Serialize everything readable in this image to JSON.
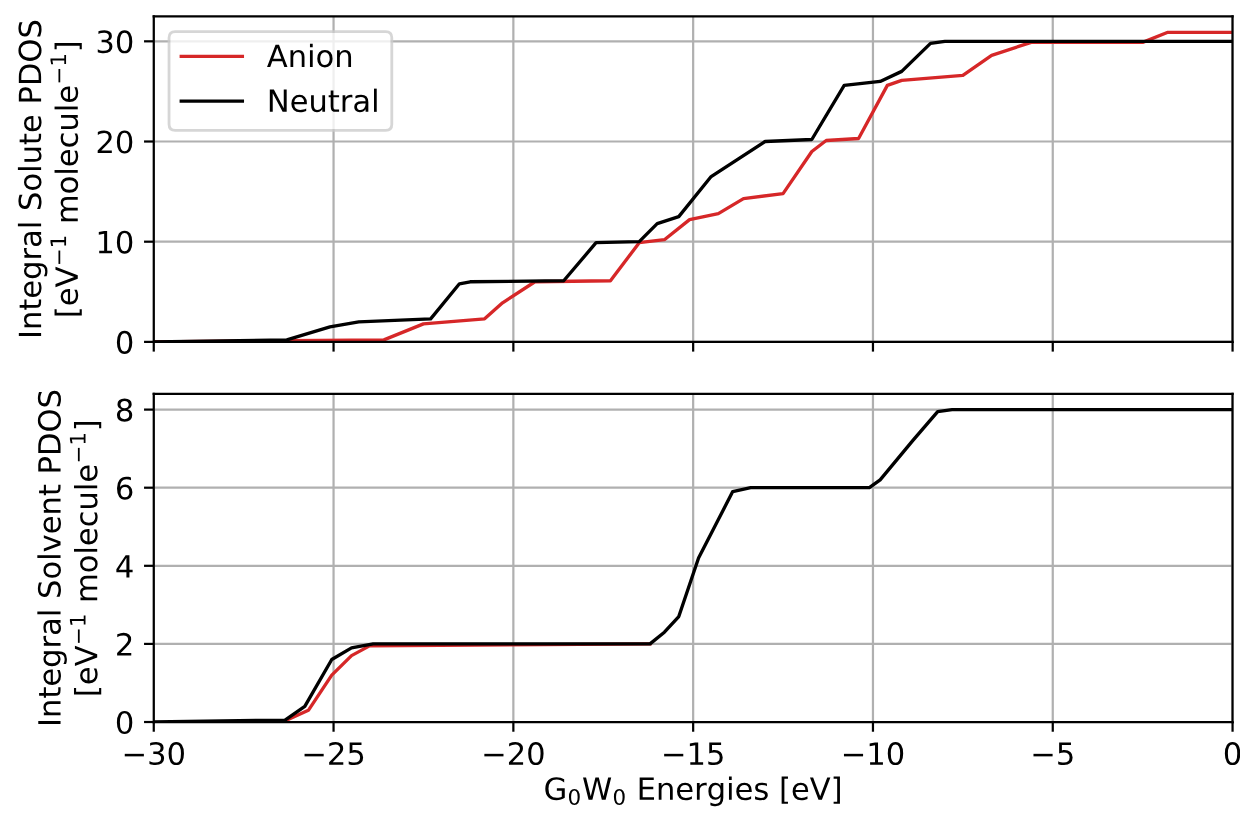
{
  "chart_data": [
    {
      "type": "line",
      "ylabel": "Integral Solute PDOS\n[eV$^{−1}$ molecule$^{−1}$]",
      "xlim": [
        -30,
        0
      ],
      "xticks": [
        {
          "value": -30,
          "label": null
        },
        {
          "value": -25,
          "label": null
        },
        {
          "value": -20,
          "label": null
        },
        {
          "value": -15,
          "label": null
        },
        {
          "value": -10,
          "label": null
        },
        {
          "value": -5,
          "label": null
        },
        {
          "value": 0,
          "label": null
        }
      ],
      "ylim": [
        0,
        32.5
      ],
      "yticks": [
        0,
        10,
        20,
        30
      ],
      "grid": true,
      "legend": "top left",
      "tick_labels": "y",
      "series": [
        {
          "name": "Anion",
          "color": "#d62728",
          "x": [
            -30,
            -23.6,
            -22.5,
            -20.8,
            -20.3,
            -19.4,
            -17.3,
            -16.5,
            -15.8,
            -15.1,
            -14.3,
            -13.6,
            -12.5,
            -11.7,
            -11.3,
            -10.4,
            -9.6,
            -9.2,
            -7.5,
            -6.7,
            -5.6,
            -2.5,
            -1.8,
            0
          ],
          "values": [
            0,
            0.2,
            1.8,
            2.3,
            3.9,
            6,
            6.1,
            9.9,
            10.2,
            12.2,
            12.8,
            14.3,
            14.8,
            19,
            20.1,
            20.3,
            25.6,
            26.1,
            26.6,
            28.6,
            29.9,
            29.9,
            30.9,
            30.9
          ]
        },
        {
          "name": "Neutral",
          "color": "#000000",
          "x": [
            -30,
            -26.3,
            -25.1,
            -24.3,
            -22.3,
            -21.5,
            -21.2,
            -18.6,
            -17.7,
            -16.5,
            -16,
            -15.4,
            -14.5,
            -13,
            -11.7,
            -10.8,
            -9.8,
            -9.2,
            -8.4,
            -8,
            0
          ],
          "values": [
            0,
            0.2,
            1.5,
            2,
            2.3,
            5.8,
            6,
            6.1,
            9.9,
            10,
            11.8,
            12.5,
            16.5,
            20,
            20.2,
            25.6,
            26,
            27,
            29.8,
            30,
            30
          ]
        }
      ]
    },
    {
      "type": "line",
      "xlabel": "G$_{0}$W$_{0}$ Energies [eV]",
      "ylabel": "Integral Solvent PDOS\n[eV$^{−1}$ molecule$^{−1}$]",
      "xlim": [
        -30,
        0
      ],
      "xticks": [
        {
          "value": -30,
          "label": "−30"
        },
        {
          "value": -25,
          "label": "−25"
        },
        {
          "value": -20,
          "label": "−20"
        },
        {
          "value": -15,
          "label": "−15"
        },
        {
          "value": -10,
          "label": "−10"
        },
        {
          "value": -5,
          "label": "−5"
        },
        0
      ],
      "ylim": [
        0,
        8.4
      ],
      "yticks": [
        0,
        2,
        4,
        6,
        8
      ],
      "grid": true,
      "series": [
        {
          "color": "#d62728",
          "x": [
            -26.3,
            -25.7,
            -25.05,
            -24.5,
            -24,
            -16.2
          ],
          "values": [
            0.05,
            0.3,
            1.2,
            1.7,
            1.95,
            2
          ]
        },
        {
          "color": "#000000",
          "x": [
            -30,
            -26.35,
            -25.8,
            -25.05,
            -24.5,
            -23.9,
            -16.2,
            -15.8,
            -15.4,
            -14.85,
            -13.9,
            -13.4,
            -10.1,
            -9.8,
            -8.9,
            -8.2,
            -7.8,
            0
          ],
          "values": [
            0,
            0.05,
            0.4,
            1.6,
            1.9,
            2,
            2,
            2.3,
            2.7,
            4.2,
            5.9,
            6,
            6,
            6.2,
            7.2,
            7.95,
            8,
            8
          ]
        }
      ]
    }
  ]
}
